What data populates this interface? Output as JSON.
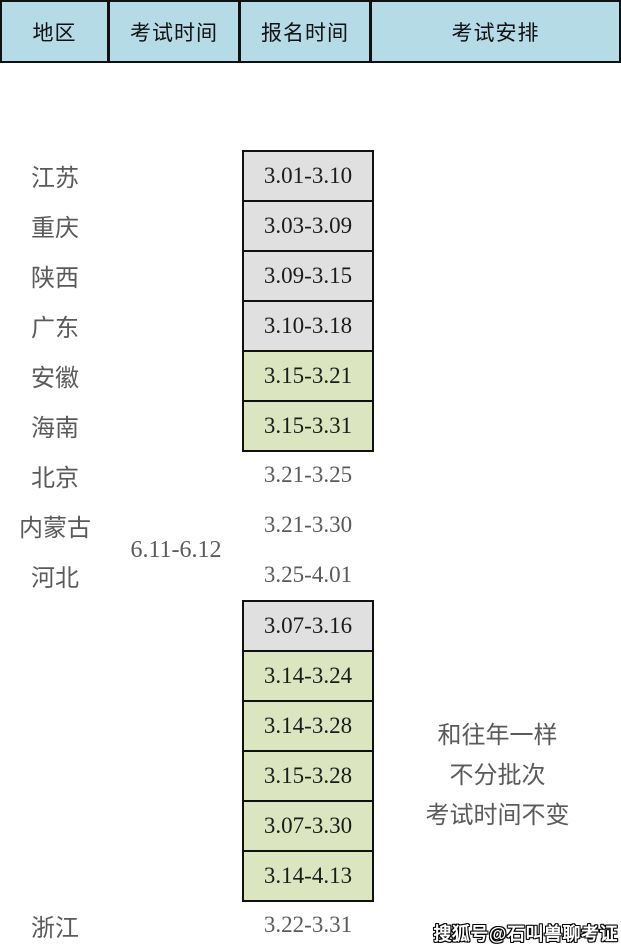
{
  "chart_data": {
    "type": "table",
    "columns": [
      "地区",
      "考试时间",
      "报名时间",
      "考试安排"
    ],
    "exam_time_shared": "6.11-6.12",
    "arrangement_shared": [
      "和往年一样",
      "不分批次",
      "考试时间不变"
    ],
    "rows": [
      {
        "region": "江苏",
        "registration": "3.01-3.10",
        "highlight": "gray"
      },
      {
        "region": "重庆",
        "registration": "3.03-3.09",
        "highlight": "gray"
      },
      {
        "region": "陕西",
        "registration": "3.09-3.15",
        "highlight": "gray"
      },
      {
        "region": "广东",
        "registration": "3.10-3.18",
        "highlight": "gray"
      },
      {
        "region": "安徽",
        "registration": "3.15-3.21",
        "highlight": "green"
      },
      {
        "region": "海南",
        "registration": "3.15-3.31",
        "highlight": "green"
      },
      {
        "region": "北京",
        "registration": "3.21-3.25",
        "highlight": "none"
      },
      {
        "region": "内蒙古",
        "registration": "3.21-3.30",
        "highlight": "none"
      },
      {
        "region": "河北",
        "registration": "3.25-4.01",
        "highlight": "none"
      },
      {
        "region": "",
        "registration": "3.07-3.16",
        "highlight": "gray"
      },
      {
        "region": "",
        "registration": "3.14-3.24",
        "highlight": "green"
      },
      {
        "region": "",
        "registration": "3.14-3.28",
        "highlight": "green"
      },
      {
        "region": "",
        "registration": "3.15-3.28",
        "highlight": "green"
      },
      {
        "region": "",
        "registration": "3.07-3.30",
        "highlight": "green"
      },
      {
        "region": "",
        "registration": "3.14-4.13",
        "highlight": "green"
      },
      {
        "region": "浙江",
        "registration": "3.22-3.31",
        "highlight": "none"
      }
    ]
  },
  "watermark": "搜狐号@石叫兽聊考证",
  "colors": {
    "header_bg": "#b5dbe7",
    "gray_cell": "#e0e0e0",
    "green_cell": "#dbe6c0",
    "border": "#111111",
    "muted_text": "#5a5a5a",
    "dark_text": "#1b1b1b"
  }
}
